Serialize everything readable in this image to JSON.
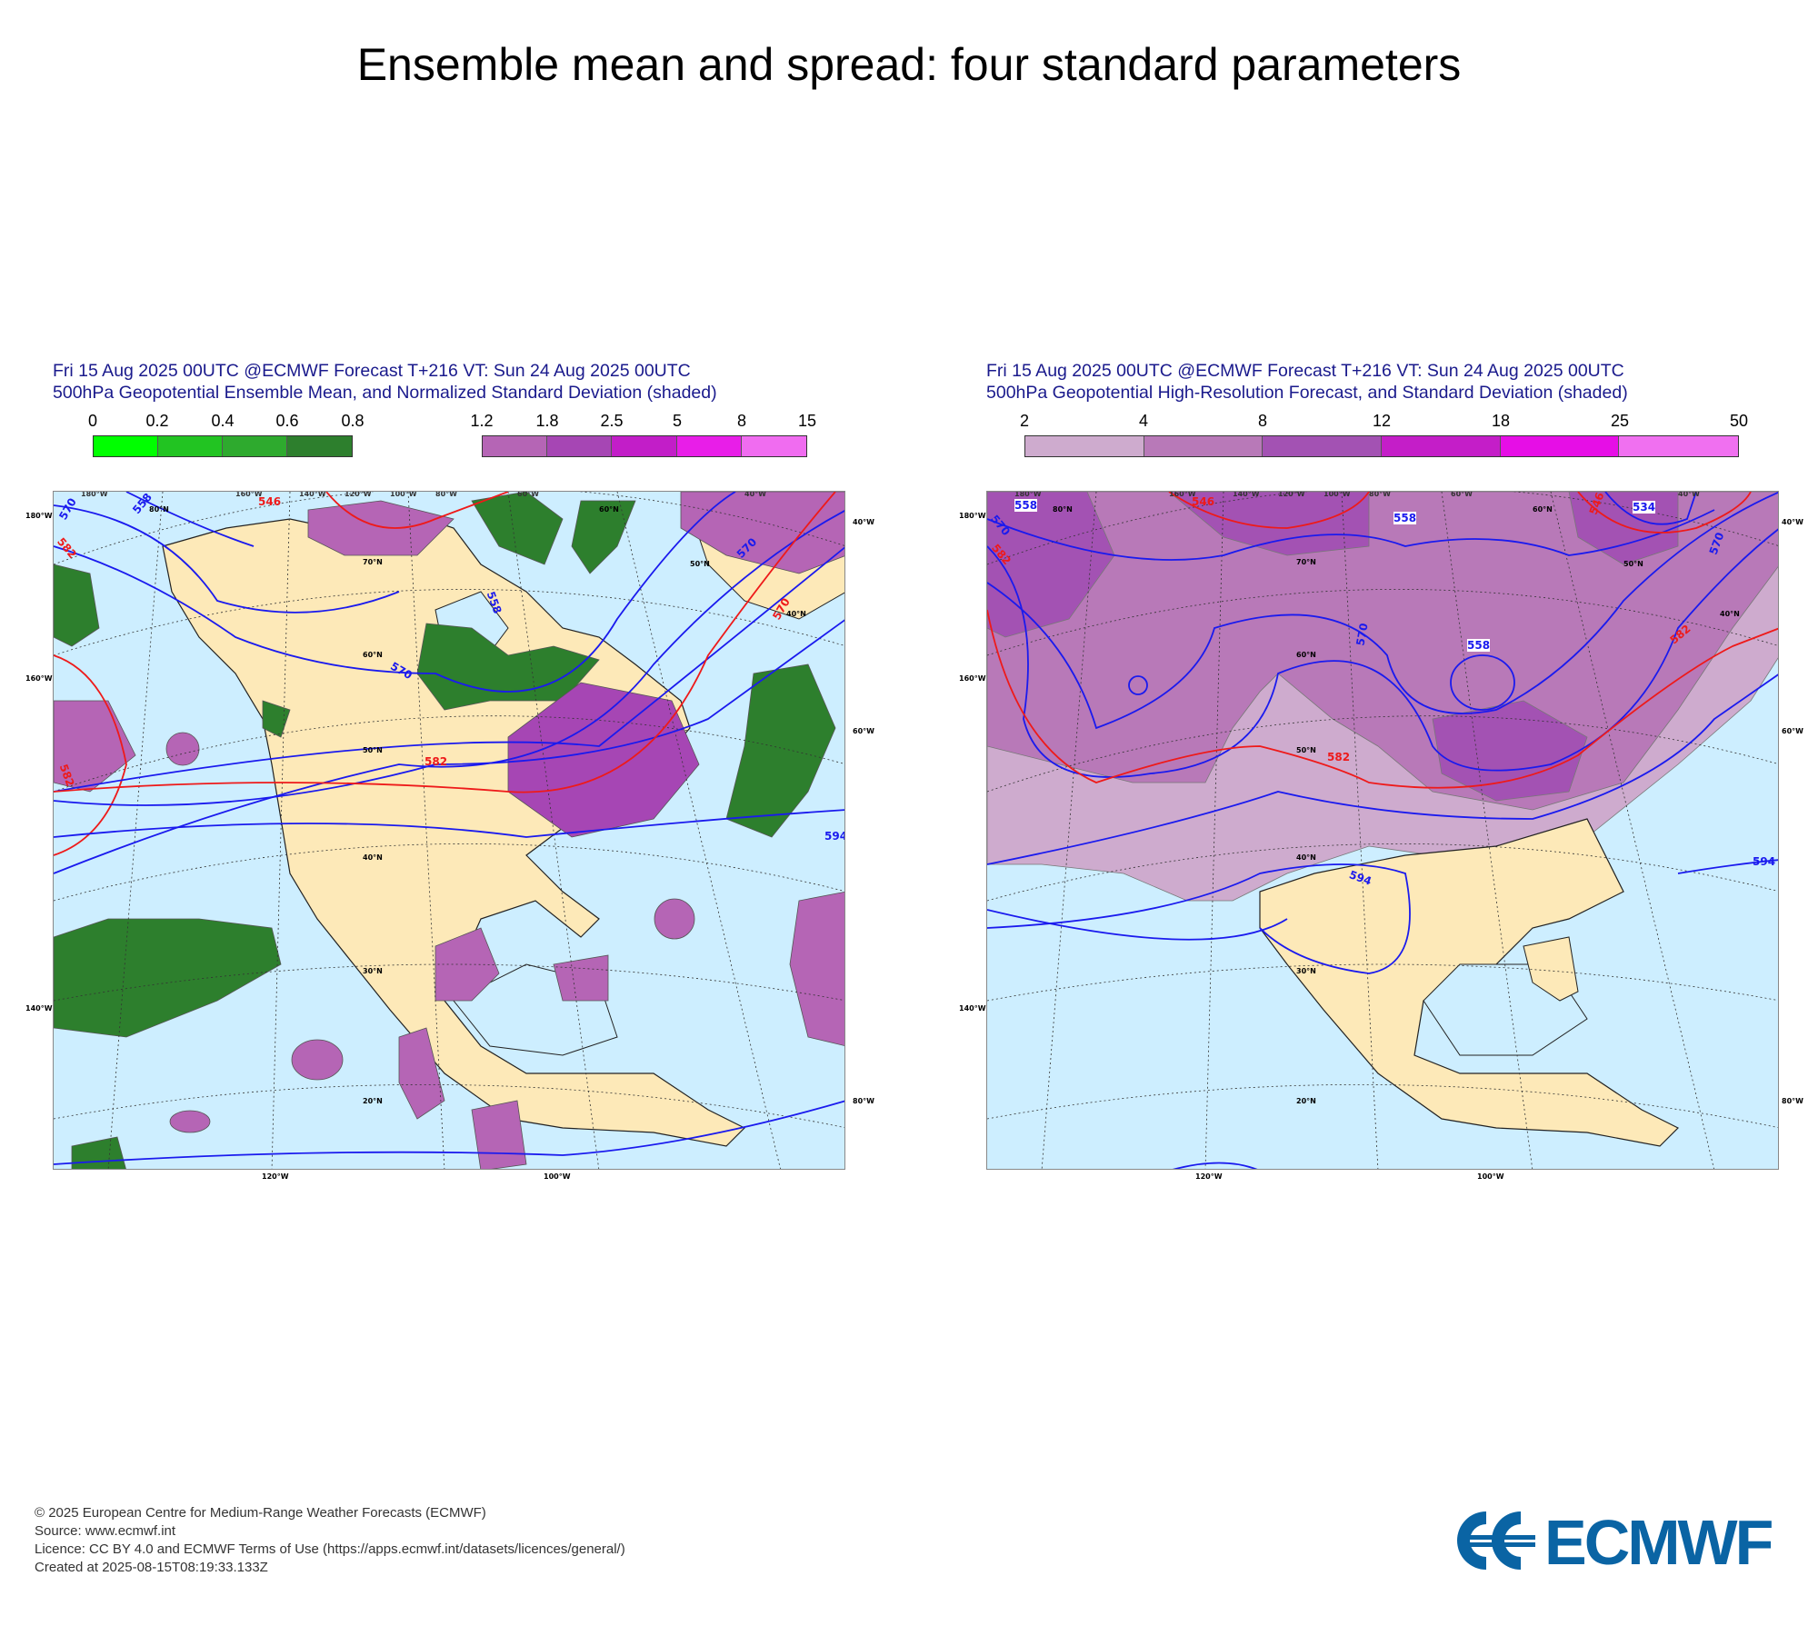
{
  "page": {
    "title": "Ensemble mean and spread: four standard parameters"
  },
  "panels": [
    {
      "title_line1": "Fri 15 Aug 2025 00UTC @ECMWF Forecast T+216 VT: Sun 24 Aug 2025 00UTC",
      "title_line2": "500hPa Geopotential Ensemble Mean, and Normalized Standard Deviation (shaded)",
      "colorbar_green": {
        "ticks": [
          "0",
          "0.2",
          "0.4",
          "0.6",
          "0.8"
        ],
        "colors": [
          "#00ff00",
          "#22c422",
          "#2eaa2e",
          "#2d7f2d"
        ]
      },
      "colorbar_purple": {
        "ticks": [
          "1.2",
          "1.8",
          "2.5",
          "5",
          "8",
          "15"
        ],
        "colors": [
          "#b565b5",
          "#a646b4",
          "#c21ec8",
          "#e81ee8",
          "#f06cf0"
        ]
      },
      "contour_labels": [
        "570",
        "558",
        "546",
        "582",
        "570",
        "558",
        "570",
        "582",
        "582",
        "594",
        "570"
      ],
      "lat_labels": [
        "70°N",
        "60°N",
        "50°N",
        "40°N",
        "30°N",
        "20°N",
        "80°N",
        "60°N",
        "50°N",
        "40°N"
      ],
      "lon_labels_top": [
        "180°W",
        "160°W",
        "140°W",
        "120°W",
        "100°W",
        "80°W",
        "60°W",
        "40°W"
      ],
      "lon_labels_left": [
        "180°W",
        "160°W",
        "140°W"
      ],
      "lon_labels_right": [
        "40°W",
        "60°W",
        "80°W"
      ],
      "lon_labels_bottom": [
        "120°W",
        "100°W"
      ]
    },
    {
      "title_line1": "Fri 15 Aug 2025 00UTC @ECMWF Forecast T+216 VT: Sun 24 Aug 2025 00UTC",
      "title_line2": "500hPa Geopotential High-Resolution Forecast, and Standard Deviation (shaded)",
      "colorbar_purple": {
        "ticks": [
          "2",
          "4",
          "8",
          "12",
          "18",
          "25",
          "50"
        ],
        "colors": [
          "#ceabce",
          "#b879b8",
          "#a352b3",
          "#c41ec8",
          "#e60ee6",
          "#f070f0"
        ]
      },
      "contour_labels": [
        "558",
        "570",
        "546",
        "582",
        "558",
        "570",
        "558",
        "546",
        "534",
        "570",
        "582",
        "582",
        "594",
        "594"
      ],
      "lat_labels": [
        "70°N",
        "60°N",
        "50°N",
        "40°N",
        "30°N",
        "20°N",
        "80°N",
        "60°N",
        "50°N",
        "40°N"
      ],
      "lon_labels_top": [
        "180°W",
        "160°W",
        "140°W",
        "120°W",
        "100°W",
        "80°W",
        "60°W",
        "40°W"
      ],
      "lon_labels_left": [
        "180°W",
        "160°W",
        "140°W"
      ],
      "lon_labels_right": [
        "40°W",
        "60°W",
        "80°W"
      ],
      "lon_labels_bottom": [
        "120°W",
        "100°W"
      ]
    }
  ],
  "footer": {
    "line1": "© 2025 European Centre for Medium-Range Weather Forecasts (ECMWF)",
    "line2": "Source: www.ecmwf.int",
    "line3": "Licence: CC BY 4.0 and ECMWF Terms of Use (https://apps.ecmwf.int/datasets/licences/general/)",
    "line4": "Created at 2025-08-15T08:19:33.133Z"
  },
  "logo": {
    "text": "ECMWF",
    "color": "#0a64a4"
  },
  "colors": {
    "ocean": "#cdeeff",
    "land": "#fde9b8",
    "contour_blue": "#1a1aee",
    "contour_red": "#ee1a1a"
  }
}
